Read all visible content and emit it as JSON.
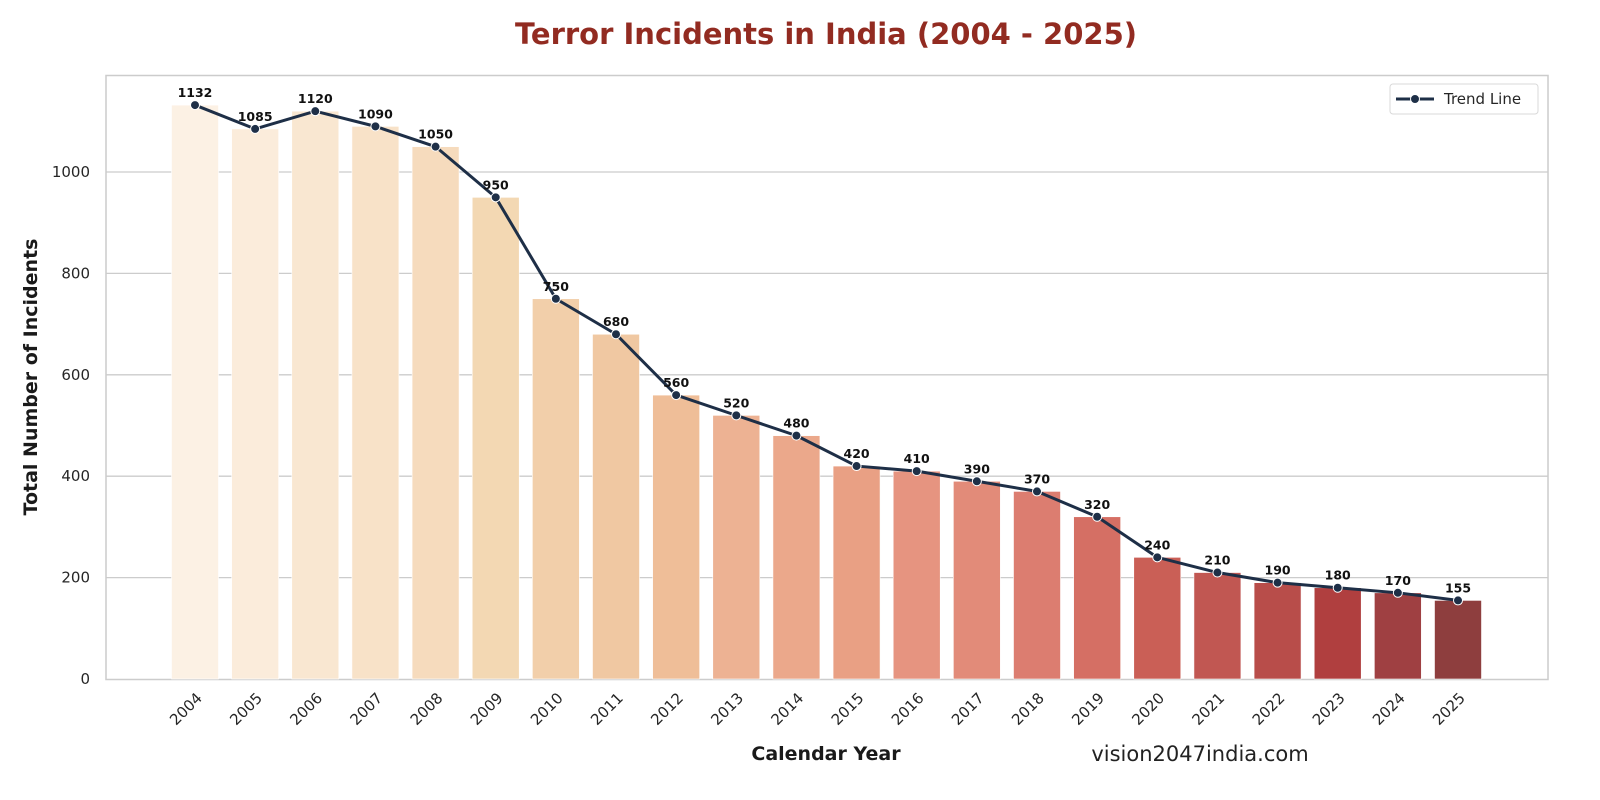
{
  "chart_data": {
    "type": "bar",
    "title": "Terror Incidents in India (2004 - 2025)",
    "xlabel": "Calendar Year",
    "ylabel": "Total Number of Incidents",
    "categories": [
      "2004",
      "2005",
      "2006",
      "2007",
      "2008",
      "2009",
      "2010",
      "2011",
      "2012",
      "2013",
      "2014",
      "2015",
      "2016",
      "2017",
      "2018",
      "2019",
      "2020",
      "2021",
      "2022",
      "2023",
      "2024",
      "2025"
    ],
    "values": [
      1132,
      1085,
      1120,
      1090,
      1050,
      950,
      750,
      680,
      560,
      520,
      480,
      420,
      410,
      390,
      370,
      320,
      240,
      210,
      190,
      180,
      170,
      155
    ],
    "series": [
      {
        "name": "Incidents (bars)",
        "type": "bar",
        "values": [
          1132,
          1085,
          1120,
          1090,
          1050,
          950,
          750,
          680,
          560,
          520,
          480,
          420,
          410,
          390,
          370,
          320,
          240,
          210,
          190,
          180,
          170,
          155
        ]
      },
      {
        "name": "Trend Line",
        "type": "line",
        "color": "#1e2f47",
        "values": [
          1132,
          1085,
          1120,
          1090,
          1050,
          950,
          750,
          680,
          560,
          520,
          480,
          420,
          410,
          390,
          370,
          320,
          240,
          210,
          190,
          180,
          170,
          155
        ]
      }
    ],
    "yticks": [
      0,
      200,
      400,
      600,
      800,
      1000
    ],
    "ylim": [
      0,
      1190
    ],
    "grid": "horizontal",
    "legend": {
      "position": "top-right",
      "entries": [
        "Trend Line"
      ]
    },
    "xtick_rotation": "45 degrees",
    "bar_palette": [
      "#fcf1e4",
      "#fbecdb",
      "#f9e7d1",
      "#f8e2c8",
      "#f6dbbd",
      "#f3d8b3",
      "#f2cfaa",
      "#f0c8a2",
      "#efbe98",
      "#edb293",
      "#eba88b",
      "#e9a084",
      "#e69480",
      "#e28b79",
      "#dc7d70",
      "#d56f64",
      "#ca5f56",
      "#c15752",
      "#b84d4a",
      "#b03f3f",
      "#9f4042",
      "#8e3e3e"
    ],
    "title_color": "#922b21"
  },
  "watermark": "vision2047india.com"
}
